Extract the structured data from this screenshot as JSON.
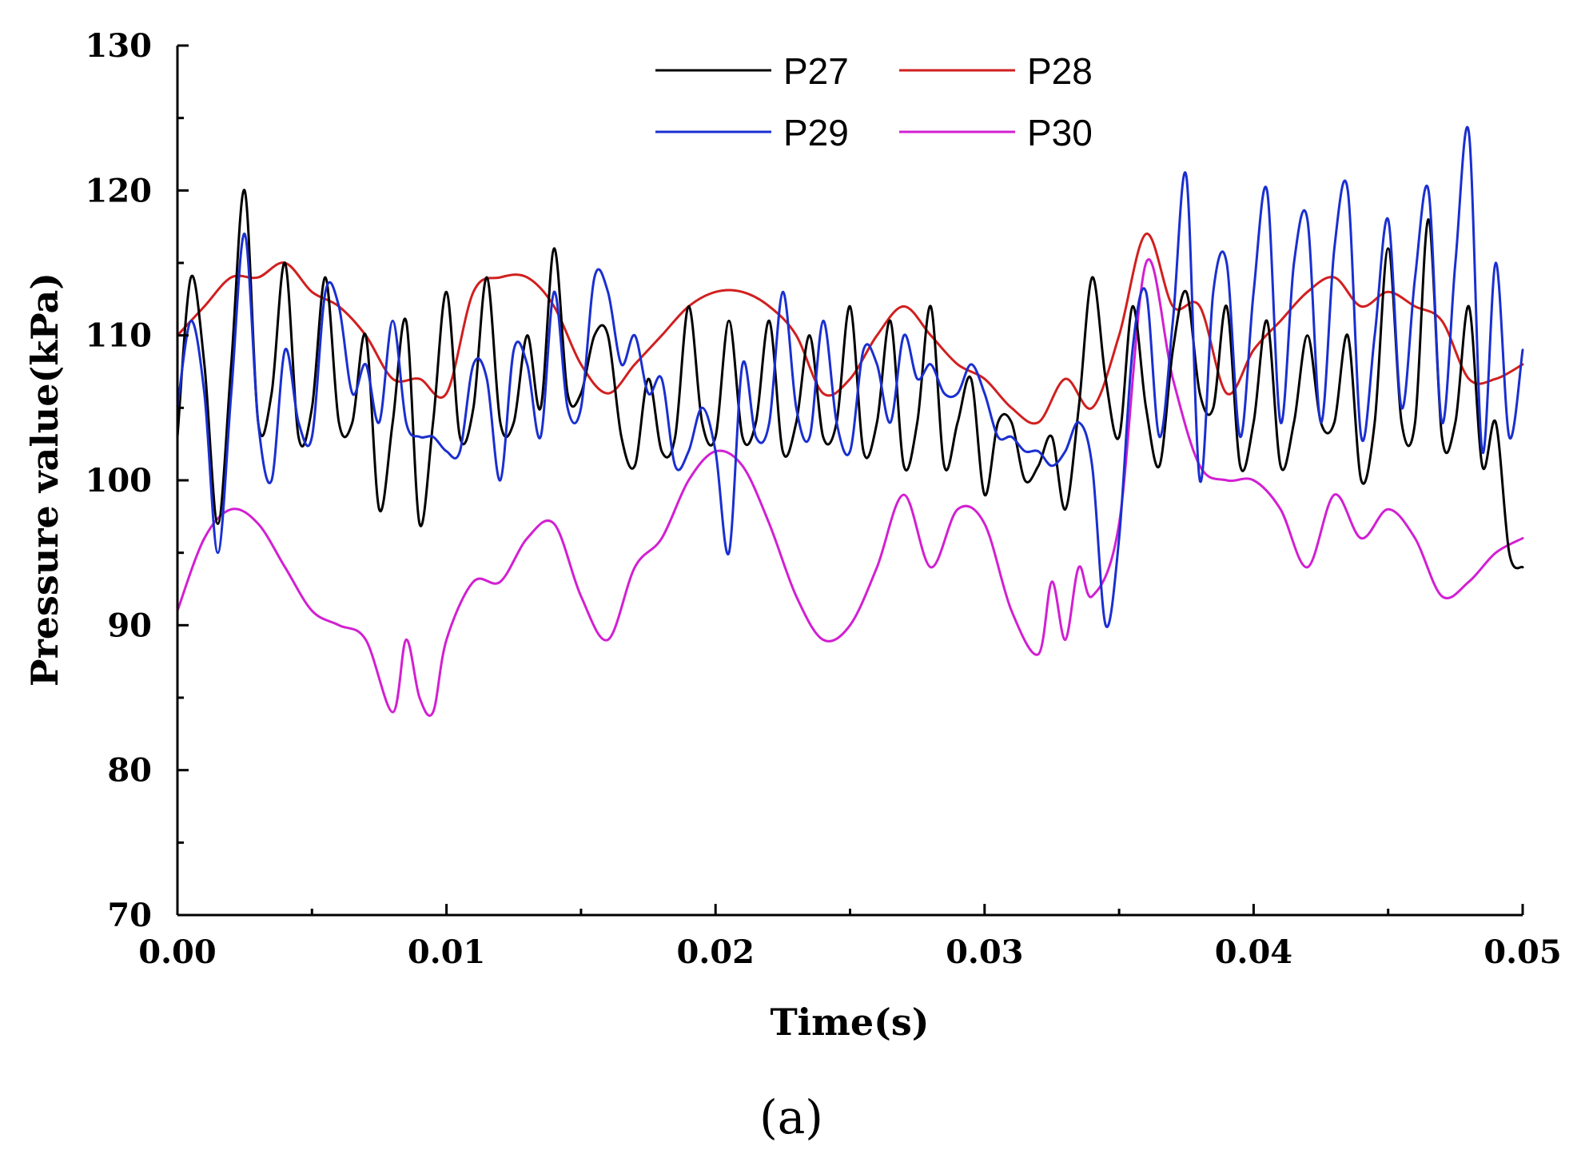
{
  "chart_data": {
    "type": "line",
    "title": "",
    "xlabel": "Time(s)",
    "ylabel": "Pressure value(kPa)",
    "xlim": [
      0,
      0.05
    ],
    "ylim": [
      70,
      130
    ],
    "xticks": [
      0.0,
      0.01,
      0.02,
      0.03,
      0.04,
      0.05
    ],
    "xtick_labels": [
      "0.00",
      "0.01",
      "0.02",
      "0.03",
      "0.04",
      "0.05"
    ],
    "yticks": [
      70,
      80,
      90,
      100,
      110,
      120,
      130
    ],
    "ytick_labels": [
      "70",
      "80",
      "90",
      "100",
      "110",
      "120",
      "130"
    ],
    "legend_position": "top-center",
    "caption": "(a)",
    "series": [
      {
        "name": "P27",
        "color": "#000000",
        "x": [
          0,
          0.0005,
          0.001,
          0.0015,
          0.002,
          0.0025,
          0.003,
          0.0035,
          0.004,
          0.0045,
          0.005,
          0.0055,
          0.006,
          0.0065,
          0.007,
          0.0075,
          0.008,
          0.0085,
          0.009,
          0.0095,
          0.01,
          0.0105,
          0.011,
          0.0115,
          0.012,
          0.0125,
          0.013,
          0.0135,
          0.014,
          0.0145,
          0.015,
          0.0155,
          0.016,
          0.0165,
          0.017,
          0.0175,
          0.018,
          0.0185,
          0.019,
          0.0195,
          0.02,
          0.0205,
          0.021,
          0.0215,
          0.022,
          0.0225,
          0.023,
          0.0235,
          0.024,
          0.0245,
          0.025,
          0.0255,
          0.026,
          0.0265,
          0.027,
          0.0275,
          0.028,
          0.0285,
          0.029,
          0.0295,
          0.03,
          0.0305,
          0.031,
          0.0315,
          0.032,
          0.0325,
          0.033,
          0.0335,
          0.034,
          0.0345,
          0.035,
          0.0355,
          0.036,
          0.0365,
          0.037,
          0.0375,
          0.038,
          0.0385,
          0.039,
          0.0395,
          0.04,
          0.0405,
          0.041,
          0.0415,
          0.042,
          0.0425,
          0.043,
          0.0435,
          0.044,
          0.0445,
          0.045,
          0.0455,
          0.046,
          0.0465,
          0.047,
          0.0475,
          0.048,
          0.0485,
          0.049,
          0.0495,
          0.05
        ],
        "values": [
          103,
          114,
          108,
          97,
          108,
          120,
          104,
          106,
          115,
          103,
          105,
          114,
          104,
          104,
          110,
          98,
          104,
          111,
          97,
          104,
          113,
          103,
          105,
          114,
          104,
          104,
          110,
          105,
          116,
          106,
          106,
          110,
          110,
          103,
          101,
          107,
          102,
          103,
          112,
          104,
          103,
          111,
          103,
          104,
          111,
          102,
          104,
          110,
          103,
          104,
          112,
          102,
          104,
          111,
          101,
          104,
          112,
          101,
          104,
          107,
          99,
          104,
          104,
          100,
          101,
          103,
          98,
          105,
          114,
          107,
          103,
          112,
          105,
          101,
          109,
          113,
          106,
          105,
          112,
          101,
          104,
          111,
          101,
          104,
          110,
          104,
          104,
          110,
          100,
          104,
          116,
          104,
          104,
          118,
          103,
          104,
          112,
          101,
          104,
          95,
          94
        ]
      },
      {
        "name": "P28",
        "color": "#d11f1f",
        "x": [
          0,
          0.001,
          0.002,
          0.003,
          0.004,
          0.005,
          0.006,
          0.007,
          0.008,
          0.009,
          0.01,
          0.011,
          0.012,
          0.013,
          0.014,
          0.015,
          0.016,
          0.017,
          0.018,
          0.019,
          0.02,
          0.021,
          0.022,
          0.023,
          0.024,
          0.025,
          0.026,
          0.027,
          0.028,
          0.029,
          0.03,
          0.031,
          0.032,
          0.033,
          0.034,
          0.035,
          0.036,
          0.037,
          0.038,
          0.039,
          0.04,
          0.041,
          0.042,
          0.043,
          0.044,
          0.045,
          0.046,
          0.047,
          0.048,
          0.049,
          0.05
        ],
        "values": [
          110,
          112,
          114,
          114,
          115,
          113,
          112,
          110,
          107,
          107,
          106,
          113,
          114,
          114,
          112,
          108,
          106,
          108,
          110,
          112,
          113,
          113,
          112,
          110,
          106,
          107,
          110,
          112,
          110,
          108,
          107,
          105,
          104,
          107,
          105,
          110,
          117,
          112,
          112,
          106,
          109,
          111,
          113,
          114,
          112,
          113,
          112,
          111,
          107,
          107,
          108
        ]
      },
      {
        "name": "P29",
        "color": "#1a2fd0",
        "x": [
          0,
          0.0005,
          0.001,
          0.0015,
          0.002,
          0.0025,
          0.003,
          0.0035,
          0.004,
          0.0045,
          0.005,
          0.0055,
          0.006,
          0.0065,
          0.007,
          0.0075,
          0.008,
          0.0085,
          0.009,
          0.0095,
          0.01,
          0.0105,
          0.011,
          0.0115,
          0.012,
          0.0125,
          0.013,
          0.0135,
          0.014,
          0.0145,
          0.015,
          0.0155,
          0.016,
          0.0165,
          0.017,
          0.0175,
          0.018,
          0.0185,
          0.019,
          0.0195,
          0.02,
          0.0205,
          0.021,
          0.0215,
          0.022,
          0.0225,
          0.023,
          0.0235,
          0.024,
          0.0245,
          0.025,
          0.0255,
          0.026,
          0.0265,
          0.027,
          0.0275,
          0.028,
          0.0285,
          0.029,
          0.0295,
          0.03,
          0.0305,
          0.031,
          0.0315,
          0.032,
          0.0325,
          0.033,
          0.0335,
          0.034,
          0.0345,
          0.035,
          0.0355,
          0.036,
          0.0365,
          0.037,
          0.0375,
          0.038,
          0.0385,
          0.039,
          0.0395,
          0.04,
          0.0405,
          0.041,
          0.0415,
          0.042,
          0.0425,
          0.043,
          0.0435,
          0.044,
          0.0445,
          0.045,
          0.0455,
          0.046,
          0.0465,
          0.047,
          0.0475,
          0.048,
          0.0485,
          0.049,
          0.0495,
          0.05
        ],
        "values": [
          105,
          111,
          106,
          95,
          106,
          117,
          104,
          100,
          109,
          104,
          103,
          113,
          112,
          106,
          108,
          104,
          111,
          104,
          103,
          103,
          102,
          102,
          108,
          107,
          100,
          109,
          108,
          103,
          113,
          105,
          105,
          114,
          113,
          108,
          110,
          106,
          107,
          101,
          102,
          105,
          102,
          95,
          108,
          103,
          104,
          113,
          105,
          103,
          111,
          104,
          102,
          109,
          108,
          104,
          110,
          107,
          108,
          106,
          106,
          108,
          106,
          103,
          103,
          102,
          102,
          101,
          102,
          104,
          101,
          90,
          96,
          109,
          113,
          103,
          111,
          121,
          100,
          113,
          115,
          103,
          113,
          120,
          104,
          115,
          118,
          104,
          116,
          120,
          103,
          110,
          118,
          105,
          114,
          120,
          104,
          115,
          124,
          102,
          115,
          103,
          109
        ]
      },
      {
        "name": "P30",
        "color": "#d21fd2",
        "x": [
          0,
          0.001,
          0.002,
          0.003,
          0.004,
          0.005,
          0.006,
          0.007,
          0.008,
          0.0085,
          0.009,
          0.0095,
          0.01,
          0.011,
          0.012,
          0.013,
          0.014,
          0.015,
          0.016,
          0.017,
          0.018,
          0.019,
          0.02,
          0.021,
          0.022,
          0.023,
          0.024,
          0.025,
          0.026,
          0.027,
          0.028,
          0.029,
          0.03,
          0.031,
          0.032,
          0.0325,
          0.033,
          0.0335,
          0.034,
          0.035,
          0.036,
          0.037,
          0.038,
          0.039,
          0.04,
          0.041,
          0.042,
          0.043,
          0.044,
          0.045,
          0.046,
          0.047,
          0.048,
          0.049,
          0.05
        ],
        "values": [
          91,
          96,
          98,
          97,
          94,
          91,
          90,
          89,
          84,
          89,
          85,
          84,
          89,
          93,
          93,
          96,
          97,
          92,
          89,
          94,
          96,
          100,
          102,
          101,
          97,
          92,
          89,
          90,
          94,
          99,
          94,
          98,
          97,
          91,
          88,
          93,
          89,
          94,
          92,
          97,
          115,
          107,
          101,
          100,
          100,
          98,
          94,
          99,
          96,
          98,
          96,
          92,
          93,
          95,
          96
        ]
      }
    ]
  }
}
